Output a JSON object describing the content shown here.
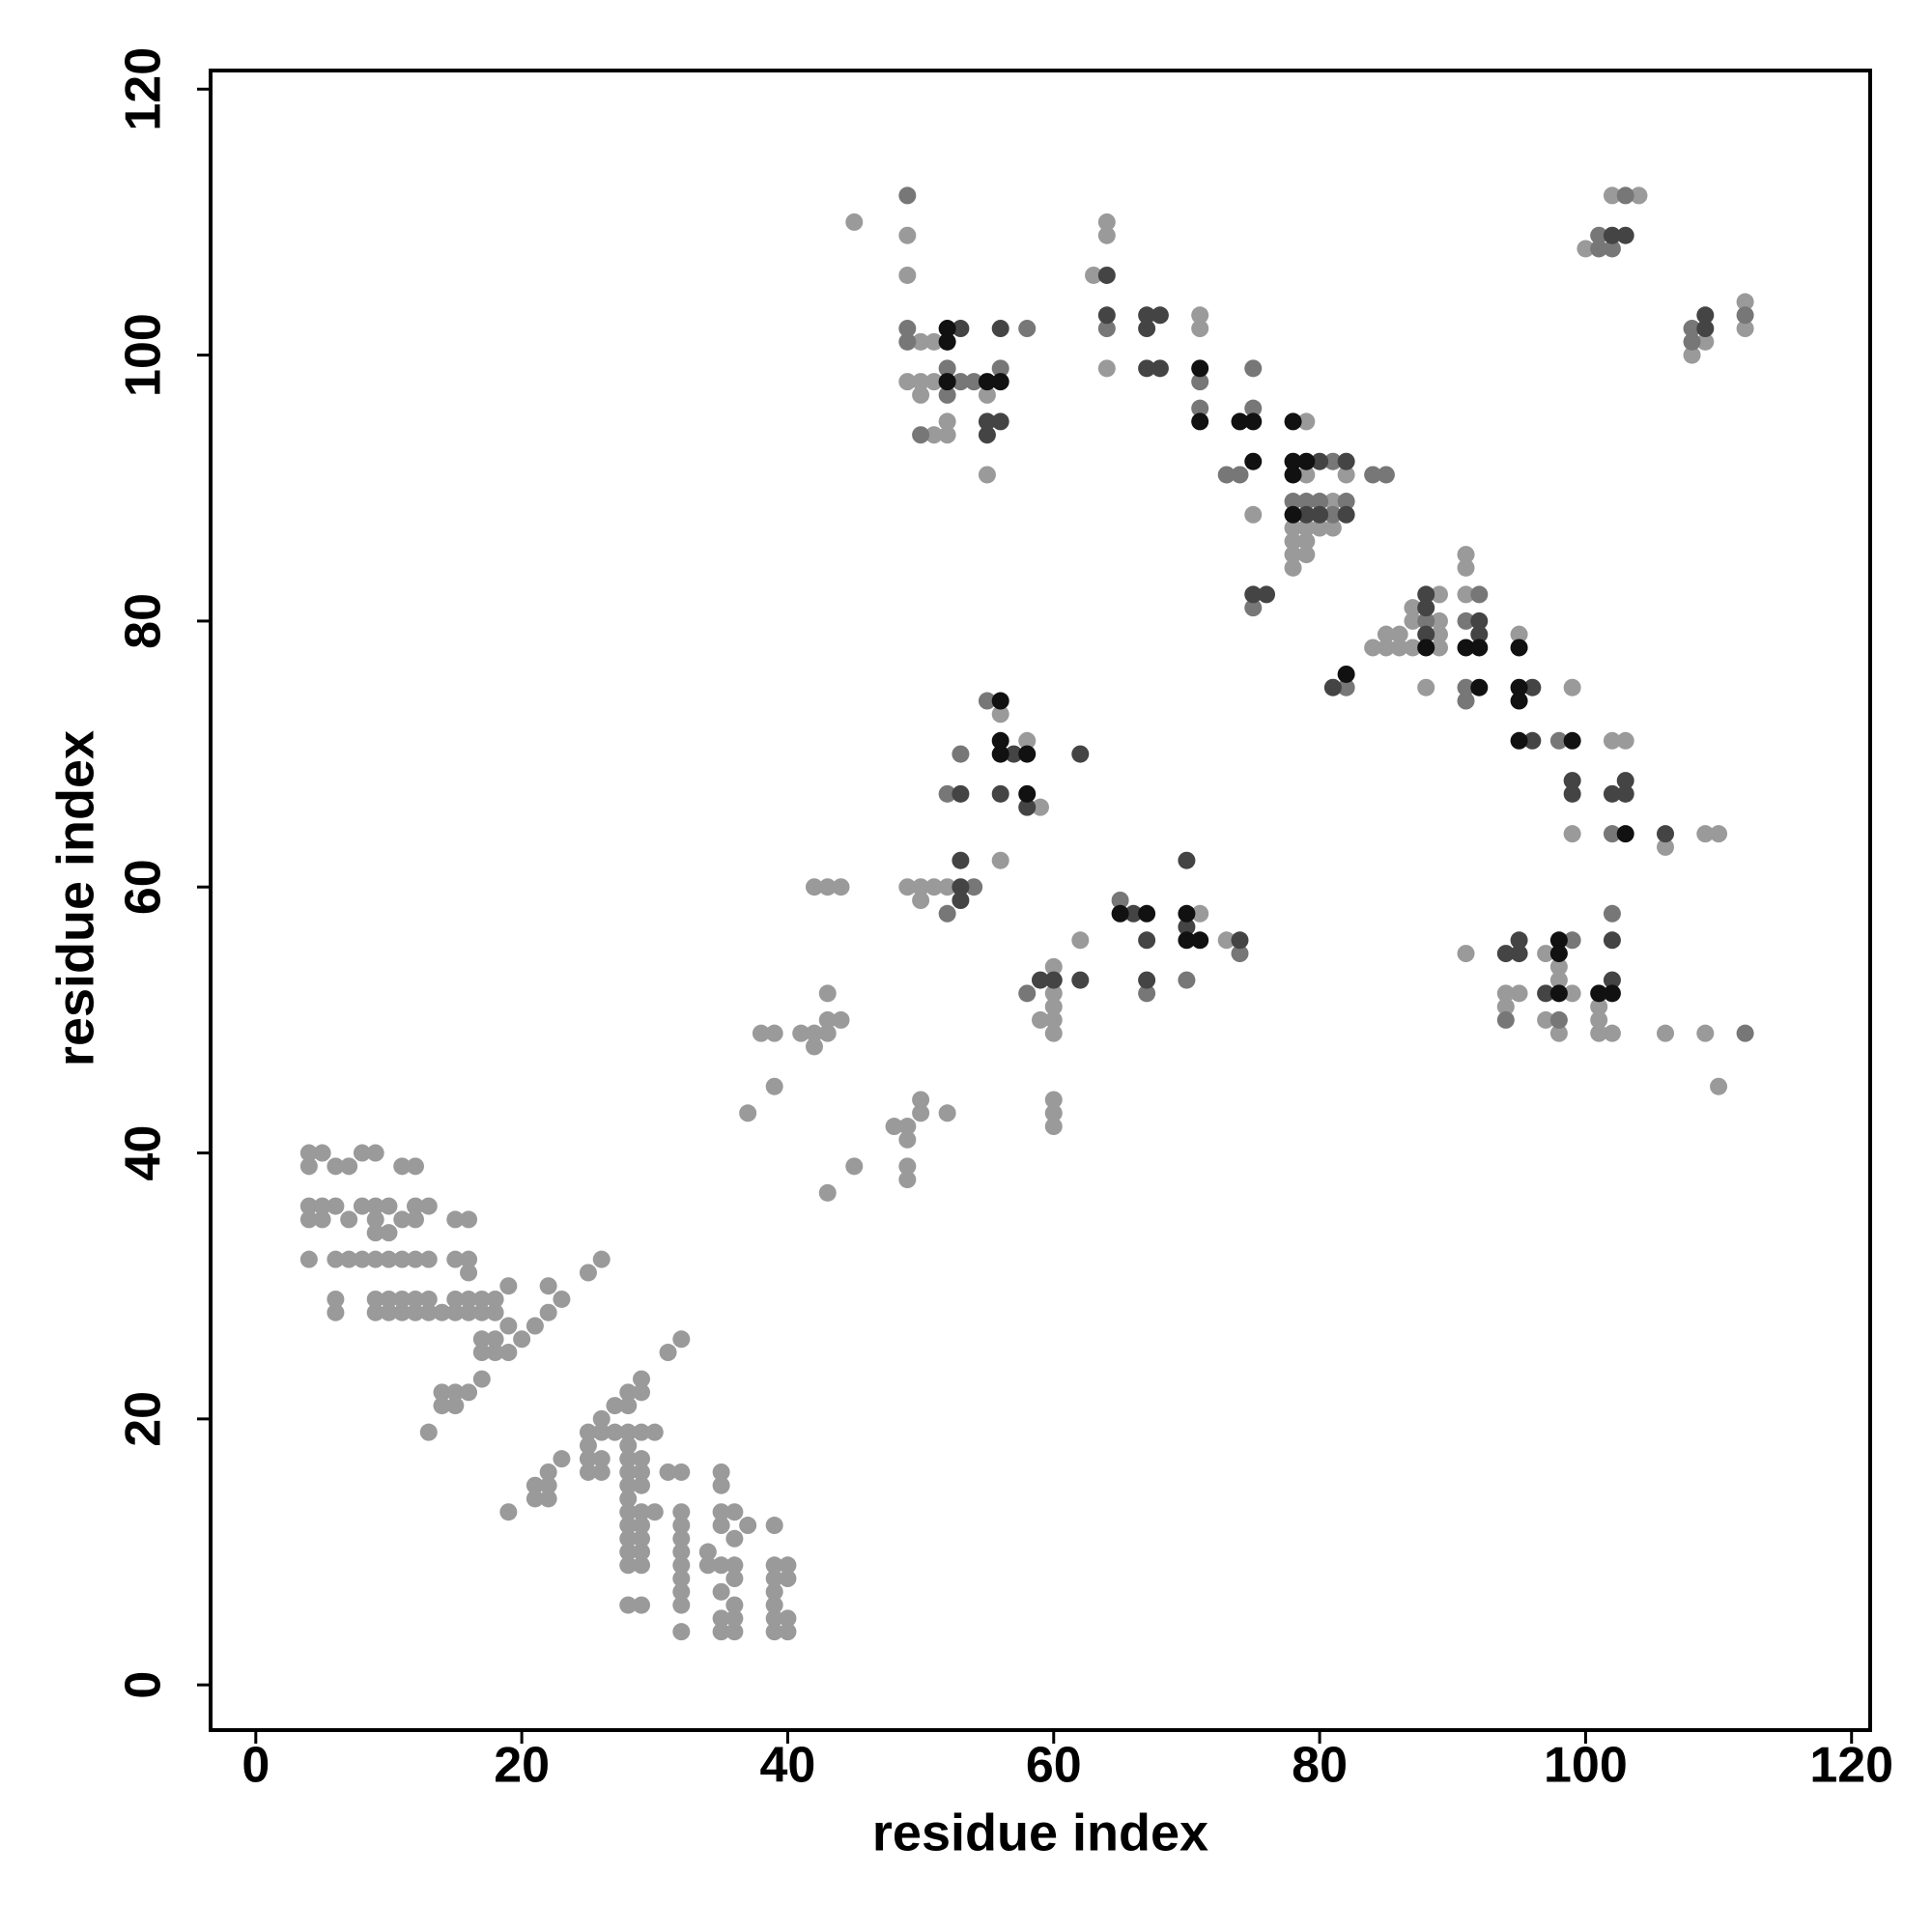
{
  "chart_data": {
    "type": "scatter",
    "x_label": "residue index",
    "y_label": "residue index",
    "xlim": [
      -3.4,
      121.4
    ],
    "ylim": [
      -3.4,
      121.4
    ],
    "xticks": [
      0,
      20,
      40,
      60,
      80,
      100,
      120
    ],
    "yticks": [
      0,
      20,
      40,
      60,
      80,
      100,
      120
    ],
    "grid": false,
    "series": [
      {
        "color": "#9a9a9a",
        "x": [
          4,
          5,
          8,
          9,
          4,
          6,
          7,
          11,
          12,
          4,
          5,
          6,
          8,
          9,
          10,
          12,
          13,
          4,
          5,
          7,
          9,
          11,
          12,
          15,
          16,
          9,
          10,
          4,
          6,
          7,
          8,
          9,
          10,
          11,
          12,
          13,
          15,
          16,
          16,
          6,
          9,
          10,
          11,
          12,
          13,
          15,
          16,
          17,
          18,
          6,
          9,
          10,
          11,
          12,
          13,
          14,
          15,
          16,
          17,
          18,
          19,
          22,
          19,
          21,
          17,
          18,
          20,
          17,
          18,
          19,
          22,
          23,
          25,
          26,
          17,
          14,
          15,
          16,
          14,
          15,
          13,
          32,
          31,
          29,
          28,
          29,
          27,
          28,
          26,
          25,
          26,
          27,
          28,
          29,
          30,
          25,
          28,
          25,
          26,
          28,
          29,
          23,
          22,
          25,
          26,
          28,
          29,
          31,
          32,
          35,
          21,
          22,
          28,
          29,
          35,
          21,
          22,
          28,
          19,
          28,
          29,
          30,
          32,
          35,
          36,
          28,
          29,
          32,
          35,
          37,
          39,
          28,
          29,
          32,
          36,
          28,
          29,
          32,
          34,
          28,
          29,
          32,
          34,
          35,
          36,
          39,
          40,
          32,
          36,
          39,
          40,
          32,
          35,
          39,
          28,
          29,
          32,
          36,
          39,
          35,
          36,
          39,
          40,
          32,
          35,
          36,
          39,
          40,
          37,
          39,
          38,
          39,
          41,
          42,
          42,
          43,
          43,
          44,
          43,
          42,
          43,
          44,
          43,
          45,
          49,
          49,
          48,
          49,
          49,
          50,
          50,
          52,
          49,
          50,
          50,
          51,
          52,
          60,
          60,
          60,
          59,
          60,
          60,
          60,
          60,
          60,
          62,
          56,
          58,
          59,
          56,
          71,
          73,
          45,
          49,
          49,
          50,
          51,
          49,
          50,
          51,
          50,
          55,
          51,
          52,
          52,
          55,
          63,
          64,
          64,
          71,
          71,
          64,
          75,
          79,
          79,
          82,
          81,
          78,
          79,
          80,
          81,
          78,
          79,
          78,
          79,
          78,
          84,
          85,
          85,
          86,
          86,
          87,
          87,
          87,
          89,
          89,
          89,
          89,
          88,
          91,
          91,
          91,
          95,
          99,
          99,
          102,
          103,
          106,
          109,
          110,
          91,
          94,
          95,
          94,
          97,
          98,
          98,
          99,
          97,
          98,
          101,
          101,
          101,
          102,
          106,
          109,
          110,
          102,
          104,
          100,
          108,
          109,
          112,
          112
        ],
        "values": [
          40,
          40,
          40,
          40,
          39,
          39,
          39,
          39,
          39,
          36,
          36,
          36,
          36,
          36,
          36,
          36,
          36,
          35,
          35,
          35,
          35,
          35,
          35,
          35,
          35,
          34,
          34,
          32,
          32,
          32,
          32,
          32,
          32,
          32,
          32,
          32,
          32,
          32,
          31,
          29,
          29,
          29,
          29,
          29,
          29,
          29,
          29,
          29,
          29,
          28,
          28,
          28,
          28,
          28,
          28,
          28,
          28,
          28,
          28,
          28,
          30,
          30,
          27,
          27,
          26,
          26,
          26,
          25,
          25,
          25,
          28,
          29,
          31,
          32,
          23,
          22,
          22,
          22,
          21,
          21,
          19,
          26,
          25,
          23,
          22,
          22,
          21,
          21,
          20,
          19,
          19,
          19,
          19,
          19,
          19,
          18,
          18,
          17,
          17,
          17,
          17,
          17,
          16,
          16,
          16,
          16,
          16,
          16,
          16,
          16,
          15,
          15,
          15,
          15,
          15,
          14,
          14,
          14,
          13,
          13,
          13,
          13,
          13,
          13,
          13,
          12,
          12,
          12,
          12,
          12,
          12,
          11,
          11,
          11,
          11,
          10,
          10,
          10,
          10,
          9,
          9,
          9,
          9,
          9,
          9,
          9,
          9,
          8,
          8,
          8,
          8,
          7,
          7,
          7,
          6,
          6,
          6,
          6,
          6,
          5,
          5,
          5,
          5,
          4,
          4,
          4,
          4,
          4,
          43,
          45,
          49,
          49,
          49,
          48,
          49,
          49,
          50,
          50,
          52,
          60,
          60,
          60,
          37,
          39,
          38,
          39,
          42,
          42,
          41,
          43,
          44,
          43,
          60,
          60,
          59,
          60,
          60,
          42,
          43,
          44,
          50,
          49,
          50,
          51,
          52,
          54,
          56,
          73,
          71,
          66,
          62,
          58,
          56,
          110,
          109,
          106,
          101,
          101,
          98,
          98,
          98,
          97,
          97,
          94,
          94,
          95,
          91,
          106,
          110,
          109,
          103,
          102,
          99,
          88,
          95,
          91,
          91,
          89,
          87,
          87,
          87,
          87,
          86,
          86,
          85,
          85,
          84,
          78,
          78,
          79,
          79,
          78,
          78,
          80,
          81,
          82,
          80,
          79,
          78,
          75,
          85,
          84,
          82,
          79,
          75,
          64,
          71,
          71,
          63,
          64,
          64,
          55,
          52,
          52,
          51,
          55,
          54,
          53,
          52,
          50,
          49,
          51,
          50,
          49,
          49,
          49,
          49,
          45,
          112,
          112,
          108,
          100,
          101,
          104,
          102
        ]
      },
      {
        "color": "#777777",
        "x": [
          52,
          54,
          58,
          52,
          53,
          55,
          65,
          67,
          70,
          74,
          49,
          49,
          49,
          53,
          54,
          52,
          52,
          56,
          50,
          58,
          64,
          71,
          71,
          75,
          75,
          73,
          74,
          75,
          81,
          84,
          85,
          78,
          79,
          80,
          82,
          81,
          82,
          88,
          92,
          91,
          91,
          91,
          98,
          102,
          94,
          99,
          98,
          102,
          112,
          103,
          101,
          101,
          102,
          108,
          108,
          112
        ],
        "values": [
          58,
          60,
          52,
          67,
          70,
          74,
          59,
          52,
          53,
          55,
          112,
          102,
          101,
          98,
          98,
          97,
          99,
          99,
          94,
          102,
          102,
          98,
          96,
          96,
          99,
          91,
          91,
          81,
          92,
          91,
          91,
          89,
          89,
          89,
          89,
          88,
          75,
          80,
          82,
          80,
          75,
          74,
          71,
          64,
          50,
          56,
          50,
          58,
          49,
          112,
          108,
          109,
          108,
          102,
          101,
          103
        ]
      },
      {
        "color": "#444444",
        "x": [
          53,
          53,
          53,
          59,
          60,
          62,
          53,
          57,
          56,
          58,
          62,
          66,
          67,
          67,
          70,
          70,
          74,
          53,
          56,
          55,
          55,
          56,
          64,
          64,
          67,
          67,
          68,
          67,
          68,
          75,
          76,
          80,
          82,
          79,
          80,
          82,
          81,
          88,
          88,
          88,
          92,
          92,
          96,
          96,
          99,
          99,
          102,
          103,
          103,
          106,
          94,
          95,
          95,
          97,
          102,
          102,
          102,
          103,
          109,
          109
        ],
        "values": [
          59,
          60,
          62,
          53,
          53,
          53,
          67,
          70,
          67,
          66,
          70,
          58,
          56,
          53,
          62,
          57,
          56,
          102,
          102,
          94,
          95,
          95,
          106,
          103,
          103,
          102,
          103,
          99,
          99,
          82,
          82,
          92,
          92,
          88,
          88,
          88,
          75,
          82,
          81,
          79,
          80,
          79,
          75,
          71,
          68,
          67,
          67,
          67,
          68,
          64,
          55,
          55,
          56,
          52,
          53,
          56,
          109,
          109,
          103,
          102
        ]
      },
      {
        "color": "#111111",
        "x": [
          56,
          56,
          56,
          58,
          58,
          65,
          67,
          70,
          70,
          71,
          52,
          52,
          52,
          55,
          56,
          71,
          71,
          74,
          75,
          75,
          78,
          78,
          79,
          78,
          78,
          82,
          88,
          91,
          92,
          92,
          95,
          95,
          95,
          95,
          99,
          103,
          98,
          98,
          98,
          101,
          102
        ],
        "values": [
          74,
          71,
          70,
          70,
          67,
          58,
          58,
          58,
          56,
          56,
          102,
          101,
          98,
          98,
          98,
          99,
          95,
          95,
          95,
          92,
          95,
          92,
          92,
          91,
          88,
          76,
          78,
          78,
          78,
          75,
          78,
          75,
          74,
          71,
          71,
          64,
          56,
          55,
          52,
          52,
          52
        ]
      }
    ]
  }
}
